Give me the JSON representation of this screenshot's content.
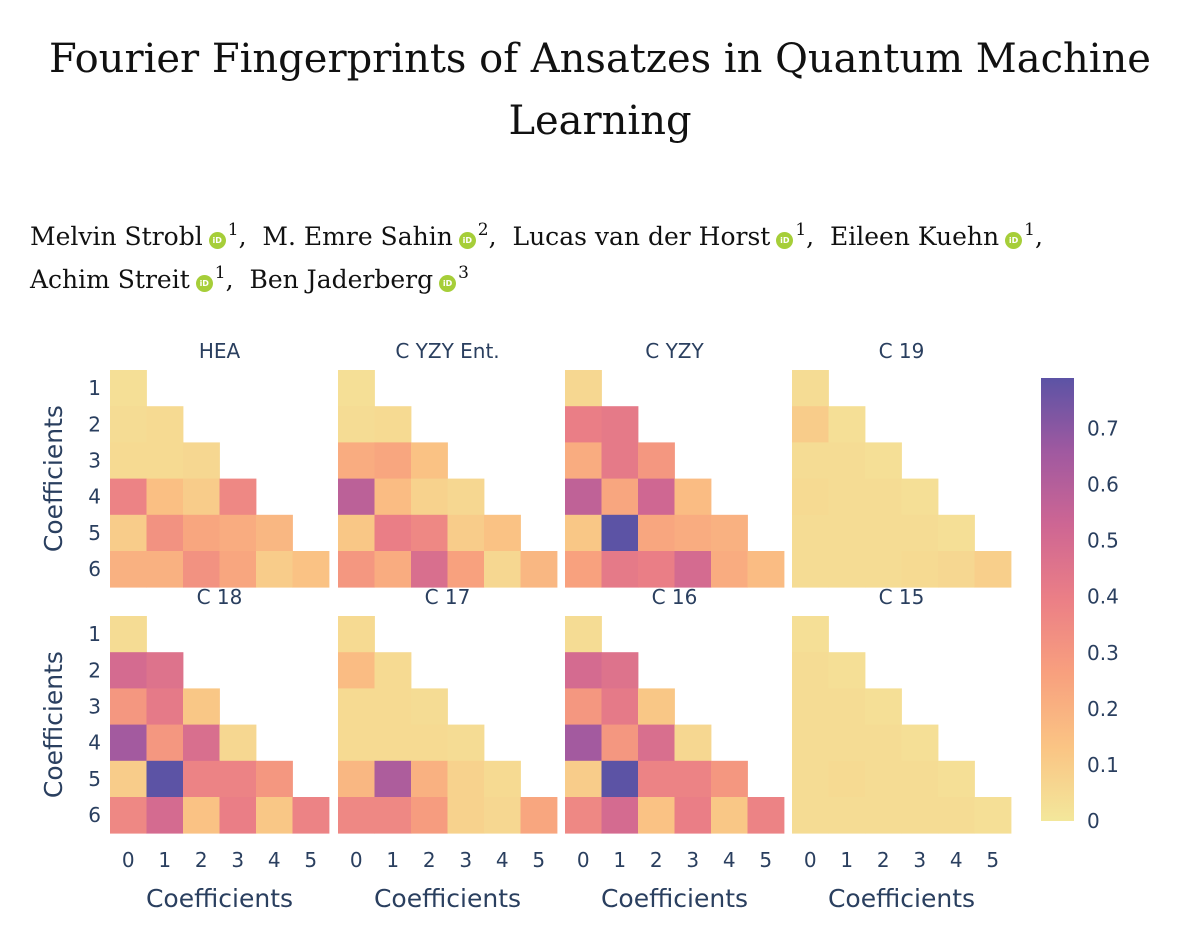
{
  "paper": {
    "title_line1": "Fourier Fingerprints of Ansatzes in Quantum Machine",
    "title_line2": "Learning",
    "orcid_glyph": "iD",
    "authors": [
      {
        "name": "Melvin Strobl",
        "aff": "1",
        "sep": ","
      },
      {
        "name": "M. Emre Sahin",
        "aff": "2",
        "sep": ","
      },
      {
        "name": "Lucas van der Horst",
        "aff": "1",
        "sep": ","
      },
      {
        "name": "Eileen Kuehn",
        "aff": "1",
        "sep": ","
      },
      {
        "name": "Achim Streit",
        "aff": "1",
        "sep": ","
      },
      {
        "name": "Ben Jaderberg",
        "aff": "3",
        "sep": ""
      }
    ]
  },
  "chart_data": {
    "type": "heatmap",
    "xlabel": "Coefficients",
    "ylabel": "Coefficients",
    "x_ticks": [
      "0",
      "1",
      "2",
      "3",
      "4",
      "5"
    ],
    "y_ticks": [
      "1",
      "2",
      "3",
      "4",
      "5",
      "6"
    ],
    "colorscale": [
      "#f3e79b",
      "#fac484",
      "#f8a07e",
      "#eb7f86",
      "#ce6693",
      "#a059a0",
      "#5c53a5"
    ],
    "zlim": [
      0,
      0.79
    ],
    "colorbar_ticks": [
      0,
      0.1,
      0.2,
      0.3,
      0.4,
      0.5,
      0.6,
      0.7
    ],
    "colorbar_labels": [
      "0",
      "0.1",
      "0.2",
      "0.3",
      "0.4",
      "0.5",
      "0.6",
      "0.7"
    ],
    "panels": [
      {
        "title": "HEA",
        "values": [
          [
            0.03
          ],
          [
            0.04,
            0.05
          ],
          [
            0.05,
            0.05,
            0.06
          ],
          [
            0.38,
            0.15,
            0.1,
            0.36
          ],
          [
            0.1,
            0.32,
            0.24,
            0.22,
            0.18
          ],
          [
            0.2,
            0.2,
            0.32,
            0.24,
            0.1,
            0.14
          ]
        ]
      },
      {
        "title": "C YZY Ent.",
        "values": [
          [
            0.03
          ],
          [
            0.04,
            0.05
          ],
          [
            0.22,
            0.24,
            0.14
          ],
          [
            0.58,
            0.16,
            0.08,
            0.06
          ],
          [
            0.12,
            0.4,
            0.36,
            0.1,
            0.14
          ],
          [
            0.3,
            0.22,
            0.48,
            0.26,
            0.06,
            0.18
          ]
        ]
      },
      {
        "title": "C YZY",
        "values": [
          [
            0.06
          ],
          [
            0.4,
            0.42
          ],
          [
            0.22,
            0.42,
            0.3
          ],
          [
            0.57,
            0.24,
            0.52,
            0.16
          ],
          [
            0.12,
            0.79,
            0.24,
            0.22,
            0.2
          ],
          [
            0.26,
            0.42,
            0.4,
            0.5,
            0.22,
            0.16
          ]
        ]
      },
      {
        "title": "C 19",
        "values": [
          [
            0.04
          ],
          [
            0.1,
            0.03
          ],
          [
            0.04,
            0.04,
            0.03
          ],
          [
            0.05,
            0.04,
            0.04,
            0.03
          ],
          [
            0.04,
            0.04,
            0.04,
            0.04,
            0.03
          ],
          [
            0.04,
            0.04,
            0.04,
            0.05,
            0.06,
            0.09
          ]
        ]
      },
      {
        "title": "C 18",
        "values": [
          [
            0.04
          ],
          [
            0.5,
            0.46
          ],
          [
            0.3,
            0.42,
            0.12
          ],
          [
            0.65,
            0.3,
            0.48,
            0.06
          ],
          [
            0.1,
            0.79,
            0.38,
            0.38,
            0.3
          ],
          [
            0.36,
            0.5,
            0.14,
            0.4,
            0.12,
            0.38
          ]
        ]
      },
      {
        "title": "C 17",
        "values": [
          [
            0.05
          ],
          [
            0.16,
            0.05
          ],
          [
            0.05,
            0.05,
            0.04
          ],
          [
            0.05,
            0.05,
            0.05,
            0.04
          ],
          [
            0.18,
            0.62,
            0.2,
            0.08,
            0.05
          ],
          [
            0.36,
            0.36,
            0.28,
            0.08,
            0.06,
            0.24
          ]
        ]
      },
      {
        "title": "C 16",
        "values": [
          [
            0.04
          ],
          [
            0.5,
            0.46
          ],
          [
            0.3,
            0.42,
            0.12
          ],
          [
            0.65,
            0.3,
            0.48,
            0.06
          ],
          [
            0.1,
            0.79,
            0.38,
            0.38,
            0.3
          ],
          [
            0.36,
            0.5,
            0.14,
            0.4,
            0.12,
            0.38
          ]
        ]
      },
      {
        "title": "C 15",
        "values": [
          [
            0.03
          ],
          [
            0.04,
            0.03
          ],
          [
            0.04,
            0.04,
            0.03
          ],
          [
            0.04,
            0.04,
            0.04,
            0.03
          ],
          [
            0.04,
            0.05,
            0.04,
            0.04,
            0.03
          ],
          [
            0.04,
            0.04,
            0.04,
            0.04,
            0.04,
            0.03
          ]
        ]
      }
    ]
  }
}
